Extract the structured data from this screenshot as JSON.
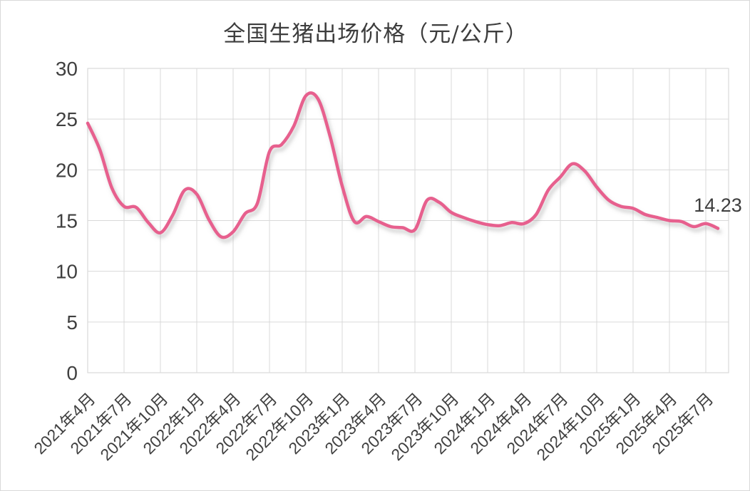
{
  "page": {
    "background_color": "#ffffff",
    "border_color": "#d9d9d9"
  },
  "chart_data": {
    "type": "line",
    "title": "全国生猪出场价格（元/公斤）",
    "xlabel": "",
    "ylabel": "",
    "ylim": [
      0,
      30
    ],
    "ytick_interval": 5,
    "yticks": [
      0,
      5,
      10,
      15,
      20,
      25,
      30
    ],
    "grid": true,
    "legend_position": "none",
    "smooth_line": true,
    "x_tick_every_n_months": 3,
    "x_tick_labels": [
      "2021年4月",
      "2021年7月",
      "2021年10月",
      "2022年1月",
      "2022年4月",
      "2022年7月",
      "2022年10月",
      "2023年1月",
      "2023年4月",
      "2023年7月",
      "2023年10月",
      "2024年1月",
      "2024年4月",
      "2024年7月",
      "2024年10月",
      "2025年1月",
      "2025年4月",
      "2025年7月"
    ],
    "categories": [
      "2021年4月",
      "2021年5月",
      "2021年6月",
      "2021年7月",
      "2021年8月",
      "2021年9月",
      "2021年10月",
      "2021年11月",
      "2021年12月",
      "2022年1月",
      "2022年2月",
      "2022年3月",
      "2022年4月",
      "2022年5月",
      "2022年6月",
      "2022年7月",
      "2022年8月",
      "2022年9月",
      "2022年10月",
      "2022年11月",
      "2022年12月",
      "2023年1月",
      "2023年2月",
      "2023年3月",
      "2023年4月",
      "2023年5月",
      "2023年6月",
      "2023年7月",
      "2023年8月",
      "2023年9月",
      "2023年10月",
      "2023年11月",
      "2023年12月",
      "2024年1月",
      "2024年2月",
      "2024年3月",
      "2024年4月",
      "2024年5月",
      "2024年6月",
      "2024年7月",
      "2024年8月",
      "2024年9月",
      "2024年10月",
      "2024年11月",
      "2024年12月",
      "2025年1月",
      "2025年2月",
      "2025年3月",
      "2025年4月",
      "2025年5月",
      "2025年6月",
      "2025年7月",
      "2025年8月"
    ],
    "values": [
      24.6,
      22.0,
      18.2,
      16.4,
      16.3,
      14.8,
      13.8,
      15.5,
      18.0,
      17.6,
      15.1,
      13.4,
      13.9,
      15.7,
      16.7,
      21.8,
      22.5,
      24.3,
      27.3,
      27.0,
      23.3,
      18.4,
      14.9,
      15.4,
      14.9,
      14.4,
      14.3,
      14.1,
      17.0,
      16.8,
      15.8,
      15.3,
      14.9,
      14.6,
      14.5,
      14.8,
      14.7,
      15.6,
      18.0,
      19.3,
      20.6,
      19.9,
      18.3,
      17.0,
      16.4,
      16.2,
      15.6,
      15.3,
      15.0,
      14.9,
      14.4,
      14.7,
      14.23
    ],
    "last_value_label": "14.23",
    "line_color": "#e7608e",
    "shadow_color": "#9a9a9a",
    "grid_color": "#d9d9d9",
    "text_color": "#404040"
  }
}
